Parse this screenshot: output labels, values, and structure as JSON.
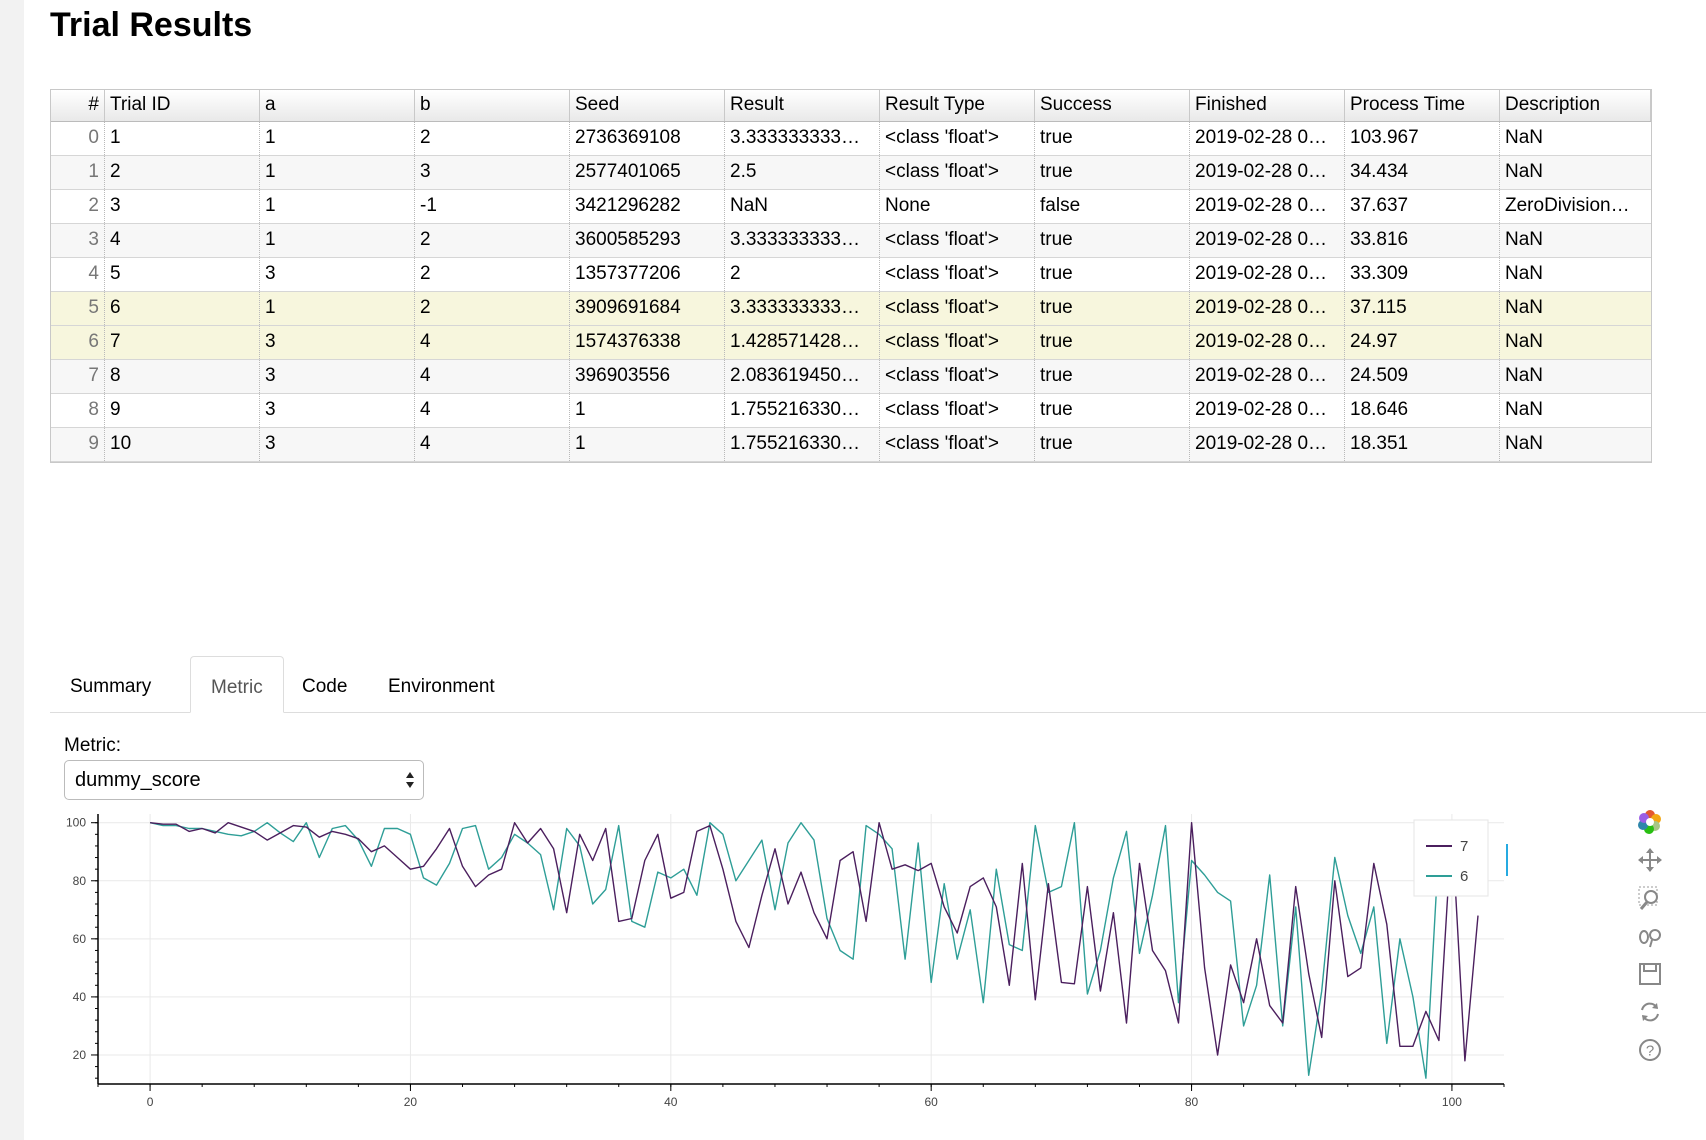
{
  "title": "Trial Results",
  "table": {
    "columns": [
      "#",
      "Trial ID",
      "a",
      "b",
      "Seed",
      "Result",
      "Result Type",
      "Success",
      "Finished",
      "Process Time",
      "Description"
    ],
    "rows": [
      [
        "0",
        "1",
        "1",
        "2",
        "2736369108",
        "3.333333333…",
        "<class 'float'>",
        "true",
        "2019-02-28 0…",
        "103.967",
        "NaN"
      ],
      [
        "1",
        "2",
        "1",
        "3",
        "2577401065",
        "2.5",
        "<class 'float'>",
        "true",
        "2019-02-28 0…",
        "34.434",
        "NaN"
      ],
      [
        "2",
        "3",
        "1",
        "-1",
        "3421296282",
        "NaN",
        "None",
        "false",
        "2019-02-28 0…",
        "37.637",
        "ZeroDivision…"
      ],
      [
        "3",
        "4",
        "1",
        "2",
        "3600585293",
        "3.333333333…",
        "<class 'float'>",
        "true",
        "2019-02-28 0…",
        "33.816",
        "NaN"
      ],
      [
        "4",
        "5",
        "3",
        "2",
        "1357377206",
        "2",
        "<class 'float'>",
        "true",
        "2019-02-28 0…",
        "33.309",
        "NaN"
      ],
      [
        "5",
        "6",
        "1",
        "2",
        "3909691684",
        "3.333333333…",
        "<class 'float'>",
        "true",
        "2019-02-28 0…",
        "37.115",
        "NaN"
      ],
      [
        "6",
        "7",
        "3",
        "4",
        "1574376338",
        "1.428571428…",
        "<class 'float'>",
        "true",
        "2019-02-28 0…",
        "24.97",
        "NaN"
      ],
      [
        "7",
        "8",
        "3",
        "4",
        "396903556",
        "2.083619450…",
        "<class 'float'>",
        "true",
        "2019-02-28 0…",
        "24.509",
        "NaN"
      ],
      [
        "8",
        "9",
        "3",
        "4",
        "1",
        "1.755216330…",
        "<class 'float'>",
        "true",
        "2019-02-28 0…",
        "18.646",
        "NaN"
      ],
      [
        "9",
        "10",
        "3",
        "4",
        "1",
        "1.755216330…",
        "<class 'float'>",
        "true",
        "2019-02-28 0…",
        "18.351",
        "NaN"
      ]
    ],
    "selected_rows": [
      5,
      6
    ]
  },
  "tabs": [
    {
      "label": "Summary",
      "active": false
    },
    {
      "label": "Metric",
      "active": true
    },
    {
      "label": "Code",
      "active": false
    },
    {
      "label": "Environment",
      "active": false
    }
  ],
  "metric": {
    "label": "Metric:",
    "selected": "dummy_score"
  },
  "toolbar": {
    "icons": [
      "bokeh-logo-icon",
      "pan-icon",
      "box-zoom-icon",
      "wheel-zoom-icon",
      "save-icon",
      "reset-icon",
      "help-icon"
    ]
  },
  "chart_data": {
    "type": "line",
    "xlim": [
      -4,
      104
    ],
    "ylim": [
      10,
      103
    ],
    "xticks": [
      0,
      20,
      40,
      60,
      80,
      100
    ],
    "yticks": [
      20,
      40,
      60,
      80,
      100
    ],
    "grid": true,
    "legend_position": "top-right",
    "series": [
      {
        "name": "7",
        "color": "#4b1f5e",
        "x_start": 0,
        "values": [
          100,
          99.5,
          99.5,
          97,
          98,
          96.5,
          100,
          98.5,
          97,
          94,
          96.5,
          99,
          98.5,
          95,
          97,
          96,
          94.5,
          90,
          92,
          88,
          84,
          85,
          91,
          98,
          85,
          78,
          82,
          84,
          100,
          93,
          98,
          91,
          69,
          96,
          87,
          98,
          66,
          67,
          87,
          96,
          74,
          76,
          97,
          99,
          84,
          66,
          57,
          75,
          91,
          72,
          83,
          69,
          60,
          87,
          90,
          66,
          100,
          84,
          85.5,
          83.5,
          86,
          71,
          62,
          78,
          81,
          71,
          44,
          86,
          39,
          79,
          45,
          44.5,
          78,
          42,
          69,
          31,
          86,
          56,
          49,
          31,
          100,
          50,
          20,
          51,
          38,
          60,
          37,
          31,
          78,
          48,
          26,
          80,
          47,
          50,
          86,
          65,
          23,
          23,
          35,
          25,
          99,
          18,
          68
        ]
      },
      {
        "name": "6",
        "color": "#2e9e97",
        "x_start": 0,
        "values": [
          100,
          99,
          99,
          98,
          98,
          97,
          96,
          95.5,
          97,
          100,
          96.5,
          93.5,
          100,
          88,
          98,
          99,
          94,
          85,
          98,
          98,
          96,
          81,
          78.5,
          86,
          98,
          99,
          84,
          88,
          96,
          93,
          89,
          70,
          98,
          92,
          72,
          77,
          99,
          66,
          64,
          83,
          81,
          84,
          75,
          100,
          96,
          80,
          87,
          94,
          70,
          93,
          100,
          94,
          67,
          56,
          53,
          99,
          96,
          91,
          53,
          93,
          45,
          79,
          53,
          70,
          38,
          84,
          58,
          56,
          99,
          76,
          78,
          100,
          41,
          56,
          81,
          97,
          55,
          75,
          99,
          38,
          87,
          82,
          76,
          73,
          30,
          44,
          82,
          30,
          71,
          13,
          42,
          88,
          68,
          55,
          71,
          24,
          60,
          40,
          12,
          92
        ]
      }
    ]
  }
}
